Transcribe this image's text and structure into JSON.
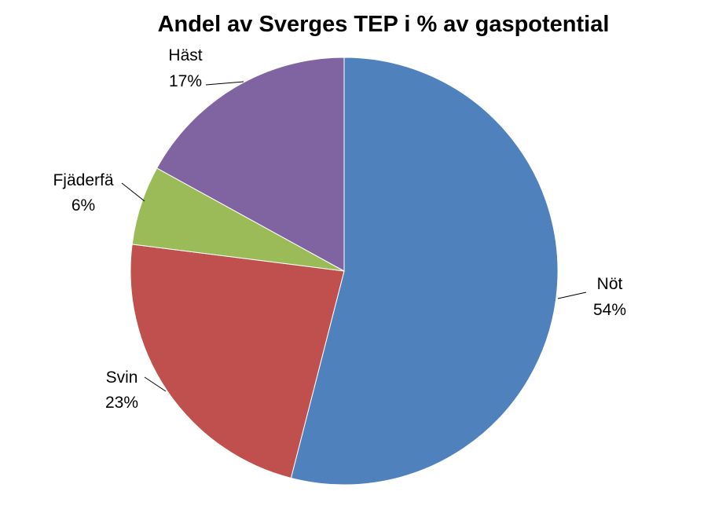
{
  "chart_data": {
    "type": "pie",
    "title": "Andel av Sverges TEP i % av gaspotential",
    "legend": "none",
    "start_angle_deg": 0,
    "direction": "clockwise",
    "slices": [
      {
        "label": "Nöt",
        "value": 54,
        "value_label": "54%",
        "color": "#4F81BD"
      },
      {
        "label": "Svin",
        "value": 23,
        "value_label": "23%",
        "color": "#C0504D"
      },
      {
        "label": "Fjäderfä",
        "value": 6,
        "value_label": "6%",
        "color": "#9BBB59"
      },
      {
        "label": "Häst",
        "value": 17,
        "value_label": "17%",
        "color": "#8064A2"
      }
    ]
  }
}
